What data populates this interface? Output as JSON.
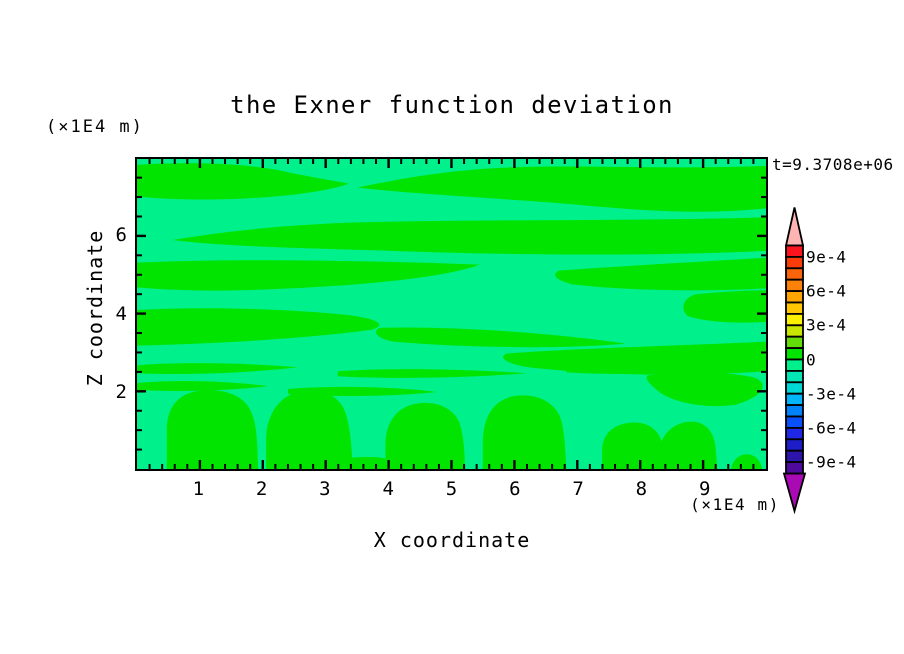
{
  "chart": {
    "title": "the Exner function deviation",
    "time_label": "t=9.3708e+06",
    "x_axis": {
      "label": "X coordinate",
      "unit": "(×1E4 m)",
      "tick_labels": [
        "1",
        "2",
        "3",
        "4",
        "5",
        "6",
        "7",
        "8",
        "9"
      ]
    },
    "y_axis": {
      "label": "Z coordinate",
      "unit": "(×1E4 m)",
      "tick_labels": [
        "6",
        "4",
        "2"
      ]
    }
  },
  "colorbar": {
    "labels": [
      "9e-4",
      "6e-4",
      "3e-4",
      "0",
      "-3e-4",
      "-6e-4",
      "-9e-4"
    ],
    "colors_top_to_bottom": [
      "#fa141e",
      "#fa3c0a",
      "#fa640a",
      "#fa820a",
      "#ffa500",
      "#ffc800",
      "#faf000",
      "#c8e600",
      "#64dc0a",
      "#00e400",
      "#00f08c",
      "#00e6b4",
      "#00d7d7",
      "#00b4fa",
      "#0082fa",
      "#0a50fa",
      "#1e28e6",
      "#1e1ec8",
      "#2d14aa",
      "#500a9b"
    ],
    "arrow_top_color": "#ffb4b4",
    "arrow_bottom_color": "#aa0ab4"
  },
  "chart_data": {
    "type": "heatmap",
    "subtype": "filled-contour",
    "title": "the Exner function deviation",
    "xlabel": "X coordinate",
    "ylabel": "Z coordinate",
    "x_unit_factor": "×1E4 m",
    "y_unit_factor": "×1E4 m",
    "time_annotation": "t=9.3708e+06",
    "xlim": [
      0,
      10
    ],
    "ylim": [
      0,
      8
    ],
    "x_ticks_major": [
      1,
      2,
      3,
      4,
      5,
      6,
      7,
      8,
      9
    ],
    "x_tick_minor_step": 0.2,
    "y_ticks_major": [
      2,
      4,
      6
    ],
    "y_tick_minor_step": 0.5,
    "grid": false,
    "legend_position": "right-colorbar",
    "contour_interval": 0.0001,
    "colorbar_range": [
      -0.001,
      0.001
    ],
    "colorbar_tick_values": [
      0.0009,
      0.0006,
      0.0003,
      0,
      -0.0003,
      -0.0006,
      -0.0009
    ],
    "field_observed": {
      "description": "Exner function deviation is everywhere within one contour interval of zero: wavy horizontal bands of slightly positive values (0 to 1e-4) alternate with slightly negative values (-1e-4 to 0); rounded positive plumes rise from the bottom boundary below z≈2.",
      "positive_level": "0 to 1e-4",
      "negative_level": "-1e-4 to 0",
      "positive_color": "#00e400",
      "negative_color": "#00f08c"
    }
  }
}
